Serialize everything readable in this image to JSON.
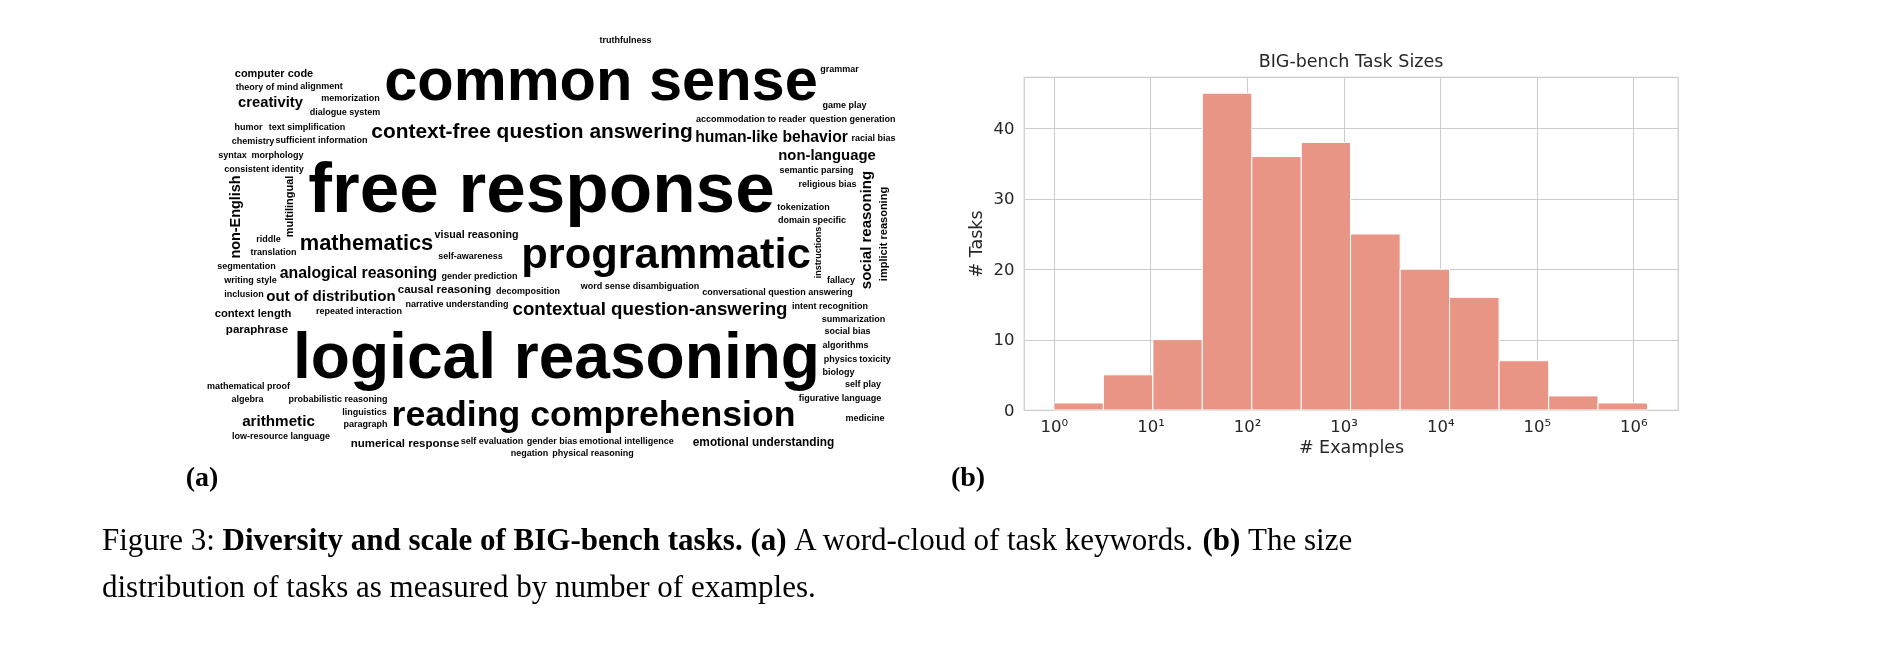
{
  "chart_data": [
    {
      "type": "other",
      "annotations": [
        "(a)",
        "common sense",
        "free response",
        "logical reasoning",
        "programmatic",
        "reading comprehension",
        "context-free question answering",
        "contextual question-answering",
        "mathematics",
        "human-like behavior",
        "non-language",
        "non-English",
        "social reasoning",
        "analogical reasoning",
        "out of distribution",
        "emotional understanding",
        "numerical response",
        "arithmetic",
        "creativity",
        "computer code",
        "paraphrase",
        "visual reasoning",
        "causal reasoning",
        "context length",
        "multilingual",
        "implicit reasoning",
        "theory of mind",
        "repeated interaction",
        "narrative understanding",
        "word sense disambiguation",
        "truthfulness",
        "low-resource language",
        "social bias",
        "summarization",
        "emotional intelligence",
        "translation",
        "game play",
        "domain specific",
        "religious bias",
        "consistent identity",
        "mathematical proof",
        "algebra",
        "self evaluation",
        "negation",
        "gender bias",
        "gender prediction",
        "decomposition",
        "self play",
        "memorization",
        "question generation",
        "racial bias",
        "tokenization",
        "linguistics",
        "algorithms",
        "physics",
        "sufficient information",
        "figurative language",
        "intent recognition",
        "fallacy",
        "semantic parsing",
        "chemistry",
        "humor",
        "syntax",
        "alignment",
        "text simplification",
        "dialogue system",
        "morphology",
        "inclusion",
        "riddle",
        "writing style",
        "segmentation",
        "self-awareness",
        "toxicity",
        "biology",
        "physical reasoning",
        "medicine",
        "paragraph",
        "probabilistic reasoning",
        "conversational question answering",
        "accommodation to reader",
        "grammar",
        "instructions"
      ]
    },
    {
      "type": "histogram",
      "title": "BIG-bench Task Sizes",
      "xlabel": "# Examples",
      "ylabel": "# Tasks",
      "annotations": [
        "(b)"
      ],
      "bins": [
        1,
        3.25,
        10.6,
        34.4,
        112,
        364,
        1180,
        3850,
        12500,
        40700,
        133000,
        431000,
        1400000
      ],
      "values": [
        1,
        5,
        10,
        45,
        36,
        38,
        25,
        20,
        16,
        7,
        2,
        1
      ],
      "color": "#e99585",
      "log": "x",
      "xlim": [
        0.49,
        2900000
      ],
      "ylim": [
        0,
        47.3
      ],
      "xticks": [
        {
          "value": 1,
          "label": "10⁰"
        },
        {
          "value": 10,
          "label": "10¹"
        },
        {
          "value": 100,
          "label": "10²"
        },
        {
          "value": 1000,
          "label": "10³"
        },
        {
          "value": 10000,
          "label": "10⁴"
        },
        {
          "value": 100000,
          "label": "10⁵"
        },
        {
          "value": 1000000,
          "label": "10⁶"
        }
      ],
      "yticks": [
        0,
        10,
        20,
        30,
        40
      ],
      "grid": true
    },
    {
      "type": "other",
      "annotations": [
        "Figure 3:",
        "Diversity and scale of BIG-bench tasks. (a)",
        "A word-cloud of task keywords.",
        "(b)",
        "The size",
        "distribution of tasks as measured by number of examples."
      ]
    }
  ]
}
